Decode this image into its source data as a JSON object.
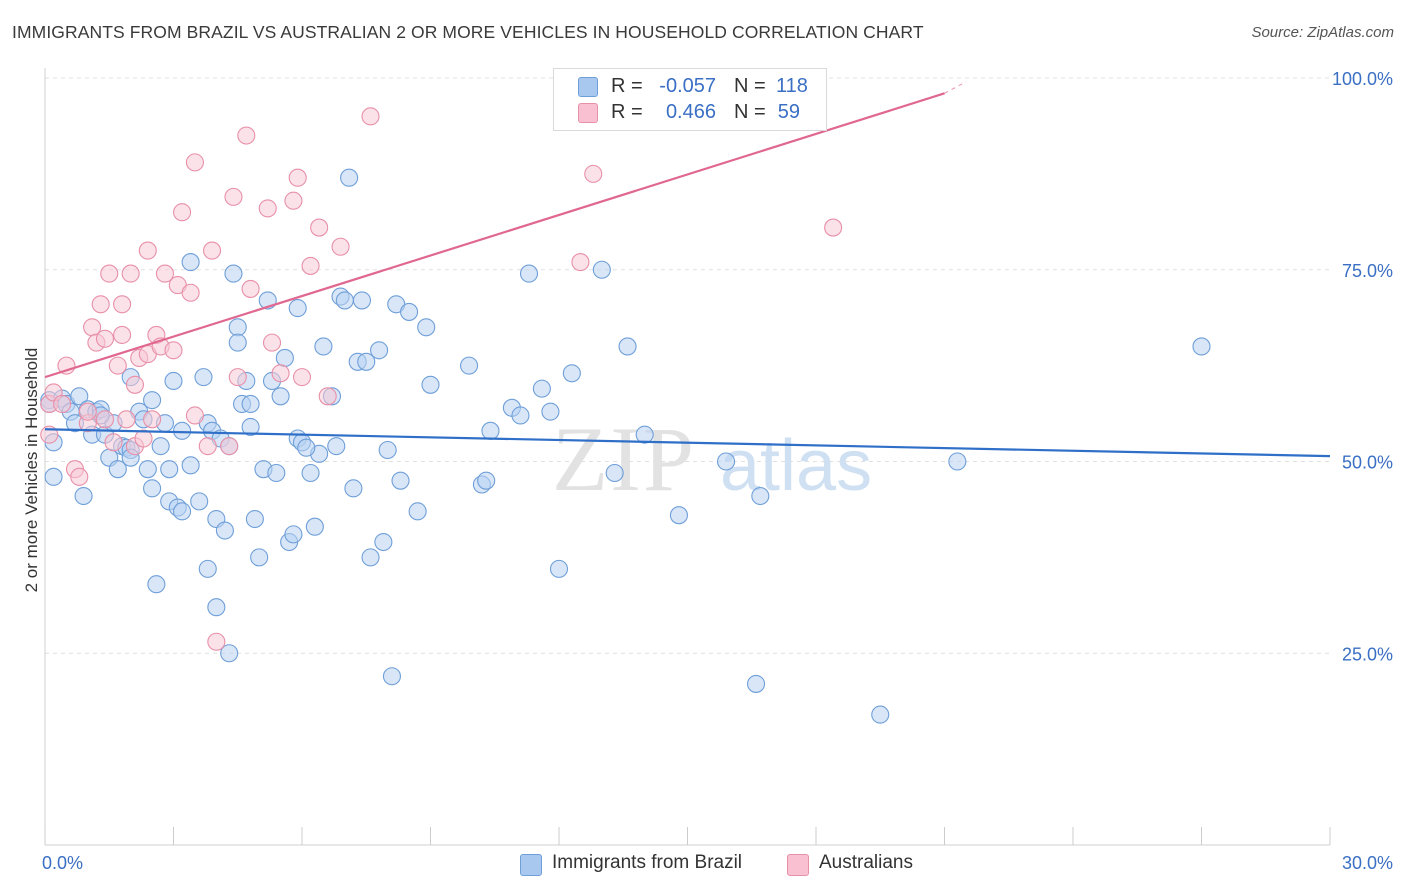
{
  "header": {
    "title": "IMMIGRANTS FROM BRAZIL VS AUSTRALIAN 2 OR MORE VEHICLES IN HOUSEHOLD CORRELATION CHART",
    "source": "Source: ZipAtlas.com"
  },
  "watermark": {
    "zip": "ZIP",
    "atlas": "atlas"
  },
  "stats": [
    {
      "r_label": "R =",
      "r_value": "-0.057",
      "n_label": "N =",
      "n_value": "118",
      "color": "#a8c8f0",
      "border": "#6f9fd8"
    },
    {
      "r_label": "R =",
      "r_value": "0.466",
      "n_label": "N =",
      "n_value": "59",
      "color": "#f8c0d0",
      "border": "#e890a8"
    }
  ],
  "chart_data": {
    "type": "scatter",
    "title": "IMMIGRANTS FROM BRAZIL VS AUSTRALIAN 2 OR MORE VEHICLES IN HOUSEHOLD CORRELATION CHART",
    "xlabel": "",
    "ylabel": "2 or more Vehicles in Household",
    "xlim": [
      0,
      30
    ],
    "ylim": [
      0,
      100
    ],
    "x_ticks_labeled": [
      {
        "value": 0,
        "label": "0.0%"
      },
      {
        "value": 30,
        "label": "30.0%"
      }
    ],
    "y_ticks": [
      {
        "value": 100,
        "label": "100.0%"
      },
      {
        "value": 75,
        "label": "75.0%"
      },
      {
        "value": 50,
        "label": "50.0%"
      },
      {
        "value": 25,
        "label": "25.0%"
      }
    ],
    "grid": true,
    "legend_position": "bottom",
    "series": [
      {
        "name": "Immigrants from Brazil",
        "color": "#6f9fd8",
        "fill": "#b8d2f2",
        "trend": {
          "x": [
            0,
            30
          ],
          "y": [
            54.2,
            50.7
          ],
          "color": "#2f6fc8"
        },
        "points": [
          [
            0.1,
            58.0
          ],
          [
            0.1,
            57.5
          ],
          [
            0.2,
            52.5
          ],
          [
            0.2,
            48.0
          ],
          [
            0.4,
            58.2
          ],
          [
            0.5,
            57.5
          ],
          [
            0.6,
            56.5
          ],
          [
            0.7,
            55.0
          ],
          [
            0.8,
            58.5
          ],
          [
            0.9,
            45.5
          ],
          [
            1.0,
            56.8
          ],
          [
            1.1,
            53.5
          ],
          [
            1.2,
            56.5
          ],
          [
            1.3,
            56.8
          ],
          [
            1.4,
            53.5
          ],
          [
            1.5,
            50.5
          ],
          [
            1.6,
            55.0
          ],
          [
            1.7,
            49.0
          ],
          [
            1.8,
            52.0
          ],
          [
            1.9,
            51.8
          ],
          [
            2.0,
            51.5
          ],
          [
            2.0,
            50.5
          ],
          [
            2.0,
            61.0
          ],
          [
            2.2,
            56.5
          ],
          [
            2.3,
            55.5
          ],
          [
            2.4,
            49.0
          ],
          [
            2.5,
            58.0
          ],
          [
            2.5,
            46.5
          ],
          [
            2.6,
            34.0
          ],
          [
            2.8,
            55.0
          ],
          [
            2.9,
            49.0
          ],
          [
            2.9,
            44.8
          ],
          [
            3.0,
            60.5
          ],
          [
            3.1,
            44.0
          ],
          [
            3.2,
            43.5
          ],
          [
            3.2,
            54.0
          ],
          [
            3.4,
            49.5
          ],
          [
            3.4,
            76.0
          ],
          [
            3.6,
            44.8
          ],
          [
            3.7,
            61.0
          ],
          [
            3.8,
            36.0
          ],
          [
            3.8,
            55.0
          ],
          [
            3.9,
            54.0
          ],
          [
            4.0,
            42.5
          ],
          [
            4.1,
            53.0
          ],
          [
            4.0,
            31.0
          ],
          [
            4.2,
            41.0
          ],
          [
            4.3,
            52.0
          ],
          [
            4.3,
            25.0
          ],
          [
            4.4,
            74.5
          ],
          [
            4.5,
            67.5
          ],
          [
            4.5,
            65.5
          ],
          [
            4.6,
            57.5
          ],
          [
            4.7,
            60.5
          ],
          [
            4.8,
            57.5
          ],
          [
            4.9,
            42.5
          ],
          [
            5.0,
            37.5
          ],
          [
            5.1,
            49.0
          ],
          [
            5.2,
            71.0
          ],
          [
            5.3,
            60.5
          ],
          [
            5.4,
            48.5
          ],
          [
            5.5,
            58.5
          ],
          [
            5.6,
            63.5
          ],
          [
            5.7,
            39.5
          ],
          [
            5.8,
            40.5
          ],
          [
            5.9,
            53.0
          ],
          [
            5.9,
            70.0
          ],
          [
            6.0,
            52.5
          ],
          [
            6.2,
            48.5
          ],
          [
            6.3,
            41.5
          ],
          [
            6.4,
            51.0
          ],
          [
            6.5,
            65.0
          ],
          [
            6.7,
            58.5
          ],
          [
            6.8,
            52.0
          ],
          [
            6.9,
            71.5
          ],
          [
            7.0,
            71.0
          ],
          [
            7.1,
            87.0
          ],
          [
            7.2,
            46.5
          ],
          [
            7.3,
            63.0
          ],
          [
            7.4,
            71.0
          ],
          [
            7.5,
            63.0
          ],
          [
            7.6,
            37.5
          ],
          [
            7.8,
            64.5
          ],
          [
            7.9,
            39.5
          ],
          [
            8.0,
            51.5
          ],
          [
            8.1,
            22.0
          ],
          [
            8.2,
            70.5
          ],
          [
            8.3,
            47.5
          ],
          [
            8.5,
            69.5
          ],
          [
            8.7,
            43.5
          ],
          [
            8.9,
            67.5
          ],
          [
            9.0,
            60.0
          ],
          [
            9.9,
            62.5
          ],
          [
            10.2,
            47.0
          ],
          [
            10.4,
            54.0
          ],
          [
            10.9,
            57.0
          ],
          [
            11.1,
            56.0
          ],
          [
            11.3,
            74.5
          ],
          [
            11.6,
            59.5
          ],
          [
            11.8,
            56.5
          ],
          [
            12.0,
            36.0
          ],
          [
            12.3,
            61.5
          ],
          [
            13.0,
            75.0
          ],
          [
            13.3,
            48.5
          ],
          [
            13.6,
            65.0
          ],
          [
            14.0,
            53.5
          ],
          [
            14.8,
            43.0
          ],
          [
            15.9,
            50.0
          ],
          [
            16.6,
            21.0
          ],
          [
            16.7,
            45.5
          ],
          [
            19.5,
            17.0
          ],
          [
            21.3,
            50.0
          ],
          [
            27.0,
            65.0
          ],
          [
            10.3,
            47.5
          ],
          [
            1.3,
            56.0
          ],
          [
            2.7,
            52.0
          ],
          [
            6.1,
            51.8
          ],
          [
            4.8,
            54.5
          ]
        ]
      },
      {
        "name": "Australians",
        "color": "#e890a8",
        "fill": "#f8c8d6",
        "trend": {
          "x": [
            0,
            21
          ],
          "y": [
            61,
            98
          ],
          "dashed_to": [
            21.5,
            99.5
          ],
          "color": "#e06890"
        },
        "points": [
          [
            0.1,
            57.5
          ],
          [
            0.1,
            53.5
          ],
          [
            0.2,
            59.0
          ],
          [
            0.4,
            57.5
          ],
          [
            0.5,
            62.5
          ],
          [
            0.7,
            49.0
          ],
          [
            0.8,
            48.0
          ],
          [
            1.0,
            55.0
          ],
          [
            1.0,
            56.5
          ],
          [
            1.1,
            67.5
          ],
          [
            1.2,
            65.5
          ],
          [
            1.3,
            70.5
          ],
          [
            1.4,
            66.0
          ],
          [
            1.4,
            55.5
          ],
          [
            1.5,
            74.5
          ],
          [
            1.6,
            52.5
          ],
          [
            1.7,
            62.5
          ],
          [
            1.8,
            66.5
          ],
          [
            1.8,
            70.5
          ],
          [
            1.9,
            55.5
          ],
          [
            2.0,
            74.5
          ],
          [
            2.1,
            52.0
          ],
          [
            2.1,
            60.0
          ],
          [
            2.2,
            63.5
          ],
          [
            2.3,
            53.0
          ],
          [
            2.4,
            64.0
          ],
          [
            2.4,
            77.5
          ],
          [
            2.5,
            55.5
          ],
          [
            2.6,
            66.5
          ],
          [
            2.7,
            65.0
          ],
          [
            2.8,
            74.5
          ],
          [
            3.0,
            64.5
          ],
          [
            3.1,
            73.0
          ],
          [
            3.2,
            82.5
          ],
          [
            3.4,
            72.0
          ],
          [
            3.5,
            89.0
          ],
          [
            3.5,
            56.0
          ],
          [
            3.8,
            52.0
          ],
          [
            3.9,
            77.5
          ],
          [
            4.0,
            26.5
          ],
          [
            4.3,
            52.0
          ],
          [
            4.4,
            84.5
          ],
          [
            4.5,
            61.0
          ],
          [
            4.7,
            92.5
          ],
          [
            4.8,
            72.5
          ],
          [
            5.2,
            83.0
          ],
          [
            5.3,
            65.5
          ],
          [
            5.5,
            61.5
          ],
          [
            5.8,
            84.0
          ],
          [
            5.9,
            87.0
          ],
          [
            6.0,
            61.0
          ],
          [
            6.2,
            75.5
          ],
          [
            6.4,
            80.5
          ],
          [
            6.6,
            58.5
          ],
          [
            6.9,
            78.0
          ],
          [
            7.6,
            95.0
          ],
          [
            12.5,
            76.0
          ],
          [
            12.8,
            87.5
          ],
          [
            18.4,
            80.5
          ]
        ]
      }
    ]
  }
}
